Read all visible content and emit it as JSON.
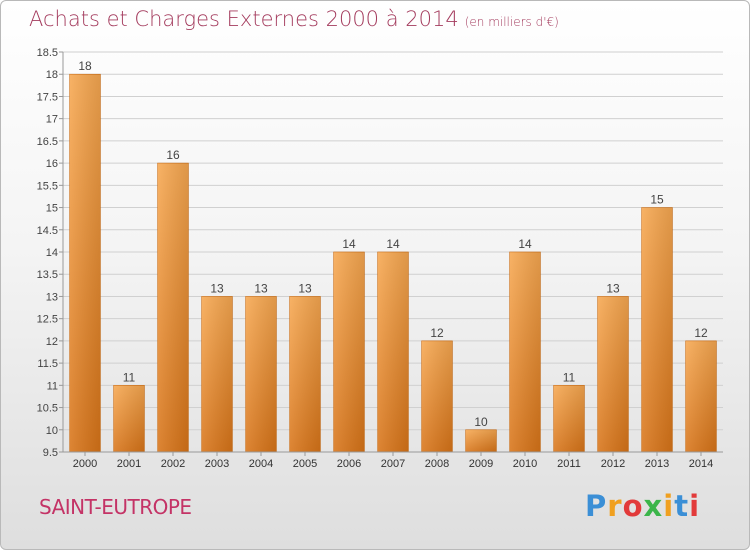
{
  "header": {
    "title": "Achats et Charges Externes 2000 à 2014",
    "unit": "(en milliers d'€)"
  },
  "footer": {
    "commune": "SAINT-EUTROPE",
    "logo": [
      "P",
      "r",
      "o",
      "x",
      "i",
      "t",
      "i"
    ],
    "logo_colors": [
      "#3b8fd6",
      "#f0a020",
      "#e23a3a",
      "#3bb54a",
      "#f0a020",
      "#3b8fd6",
      "#e23a3a"
    ]
  },
  "colors": {
    "bar_top": "#f7a851",
    "bar_bottom": "#d87418",
    "grid": "#d0d0d0",
    "axis": "#999999"
  },
  "chart_data": {
    "type": "bar",
    "title": "Achats et Charges Externes 2000 à 2014",
    "subtitle": "(en milliers d'€)",
    "categories": [
      "2000",
      "2001",
      "2002",
      "2003",
      "2004",
      "2005",
      "2006",
      "2007",
      "2008",
      "2009",
      "2010",
      "2011",
      "2012",
      "2013",
      "2014"
    ],
    "values": [
      18,
      11,
      16,
      13,
      13,
      13,
      14,
      14,
      12,
      10,
      14,
      11,
      13,
      15,
      12
    ],
    "data_labels": [
      "18",
      "11",
      "16",
      "13",
      "13",
      "13",
      "14",
      "14",
      "12",
      "10",
      "14",
      "11",
      "13",
      "15",
      "12"
    ],
    "yticks": [
      9.5,
      10,
      10.5,
      11,
      11.5,
      12,
      12.5,
      13,
      13.5,
      14,
      14.5,
      15,
      15.5,
      16,
      16.5,
      17,
      17.5,
      18,
      18.5
    ],
    "ylim": [
      9.5,
      18.5
    ],
    "grid": true,
    "legend": "none"
  }
}
